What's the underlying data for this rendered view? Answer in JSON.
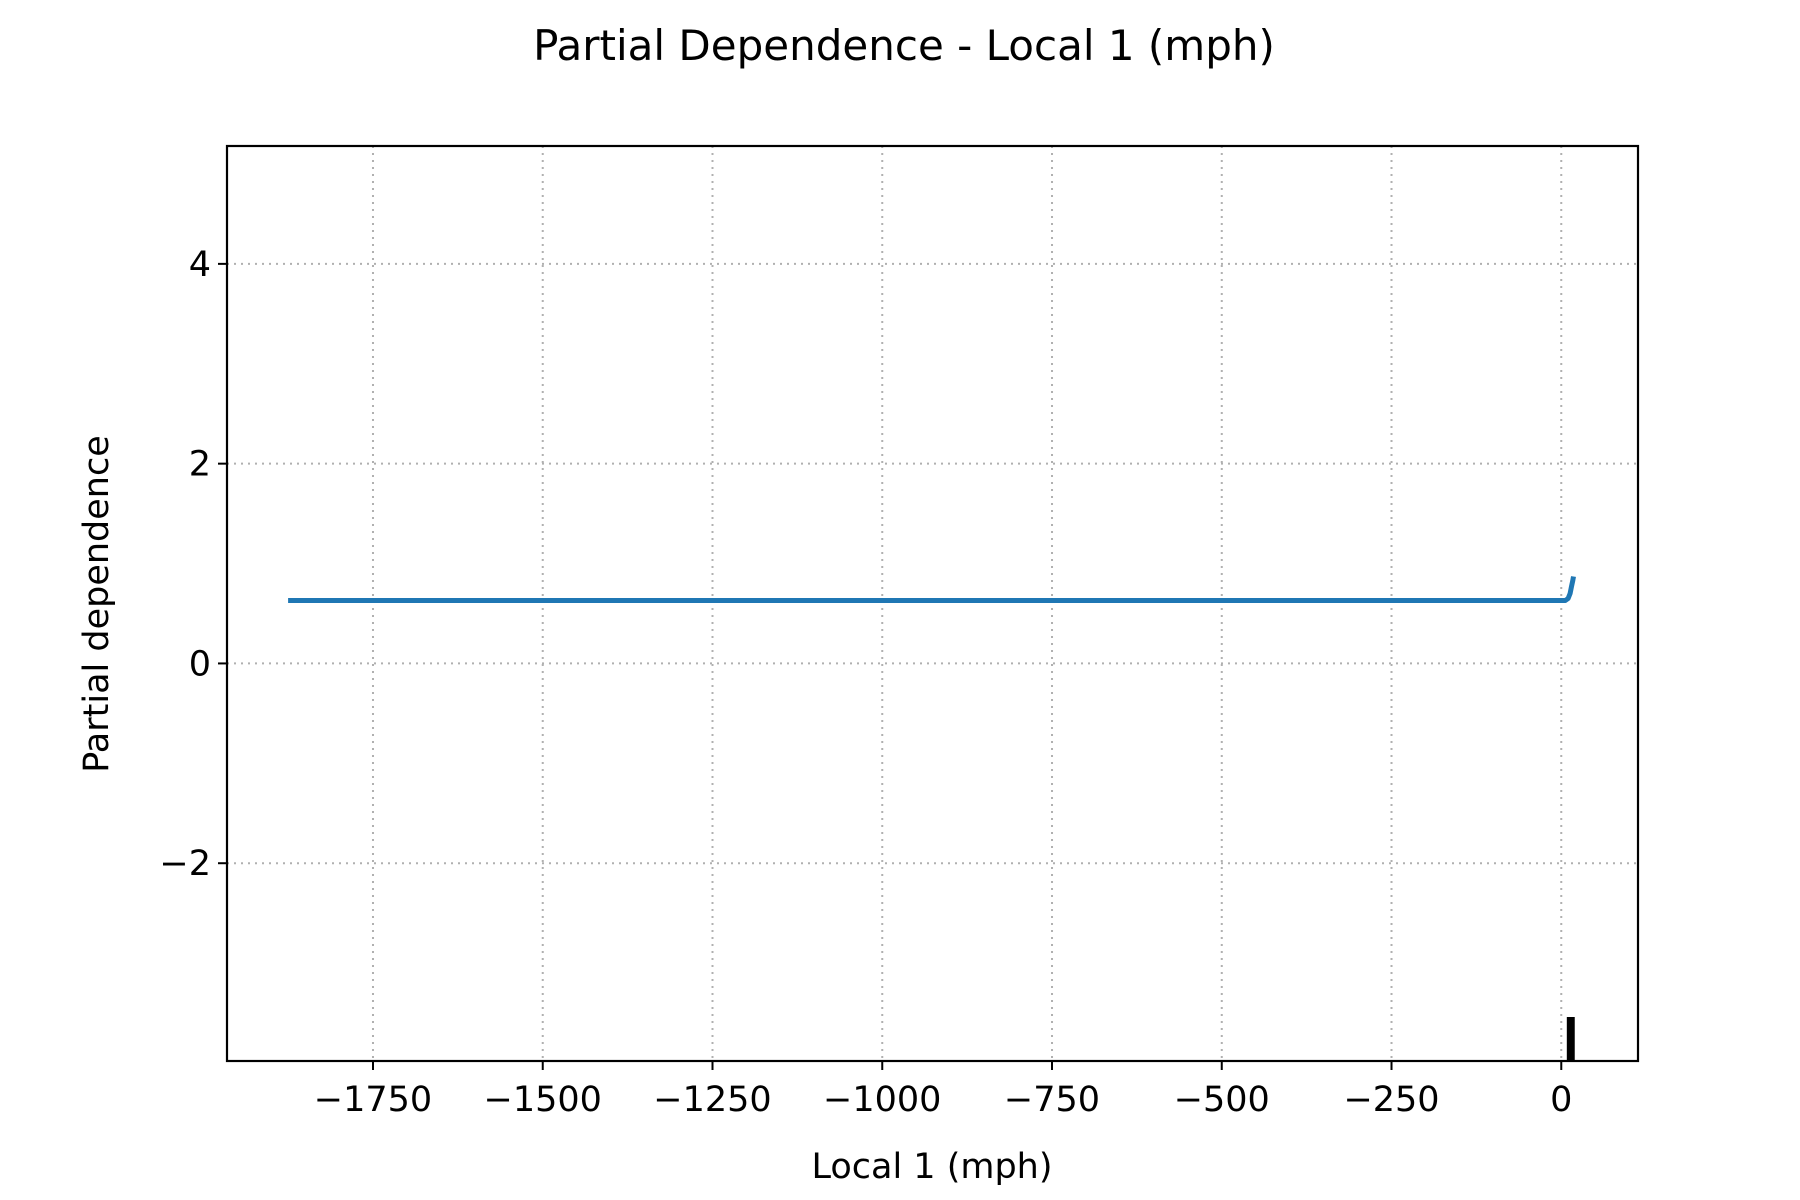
{
  "chart_data": {
    "type": "line",
    "title": "Partial Dependence - Local 1 (mph)",
    "xlabel": "Local 1 (mph)",
    "ylabel": "Partial dependence",
    "xlim": [
      -1965,
      113
    ],
    "ylim": [
      -3.98,
      5.18
    ],
    "x_ticks": [
      -1750,
      -1500,
      -1250,
      -1000,
      -750,
      -500,
      -250,
      0
    ],
    "x_tick_labels": [
      "−1750",
      "−1500",
      "−1250",
      "−1000",
      "−750",
      "−500",
      "−250",
      "0"
    ],
    "y_ticks": [
      -2,
      0,
      2,
      4
    ],
    "y_tick_labels": [
      "−2",
      "0",
      "2",
      "4"
    ],
    "grid": true,
    "series": [
      {
        "color": "#1f77b4",
        "x": [
          -1875,
          -500,
          0,
          6,
          10,
          13,
          15,
          17,
          18
        ],
        "y": [
          0.63,
          0.63,
          0.63,
          0.63,
          0.65,
          0.7,
          0.77,
          0.83,
          0.87
        ]
      }
    ],
    "rug": {
      "color": "#000000",
      "x": [
        10,
        12,
        14,
        16,
        18
      ]
    }
  }
}
